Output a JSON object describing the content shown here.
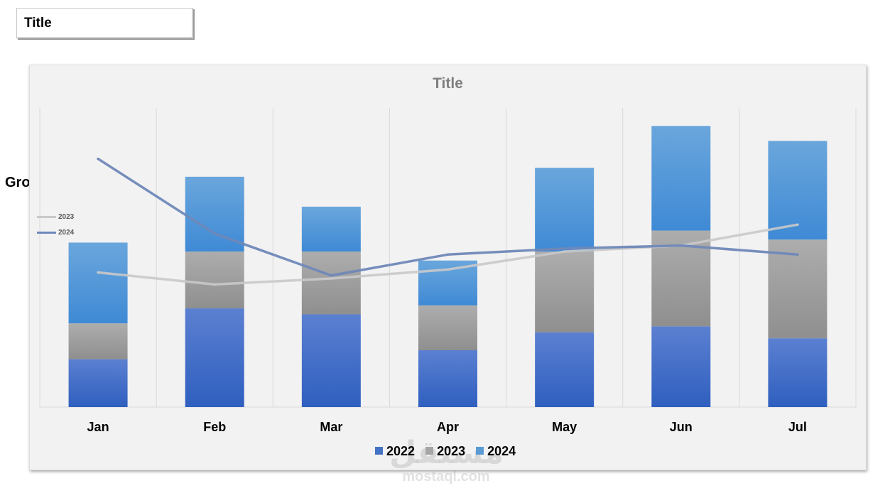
{
  "header_box": {
    "title": "Title"
  },
  "side_label": "Growth",
  "watermark": {
    "arabic": "مستقل",
    "latin": "mostaql.com"
  },
  "colors": {
    "s2022": "#4472c4",
    "s2023": "#a5a5a5",
    "s2024": "#5b9bd5",
    "line2023": "#c9c9c9",
    "line2024": "#6f88b8"
  },
  "chart_data": {
    "type": "bar",
    "stacked": true,
    "title": "Title",
    "categories": [
      "Jan",
      "Feb",
      "Mar",
      "Apr",
      "May",
      "Jun",
      "Jul"
    ],
    "series": [
      {
        "name": "2022",
        "values": [
          16,
          33,
          31,
          19,
          25,
          27,
          23
        ]
      },
      {
        "name": "2023",
        "values": [
          12,
          19,
          21,
          15,
          27,
          32,
          33
        ]
      },
      {
        "name": "2024",
        "values": [
          27,
          25,
          15,
          15,
          28,
          35,
          33
        ]
      }
    ],
    "lines": [
      {
        "name": "2023",
        "values": [
          45,
          41,
          43,
          46,
          52,
          54,
          61
        ]
      },
      {
        "name": "2024",
        "values": [
          83,
          58,
          44,
          51,
          53,
          54,
          51
        ]
      }
    ],
    "ylim": [
      0,
      100
    ],
    "grid": "vertical",
    "legend": "bottom",
    "line_legend": "left"
  }
}
